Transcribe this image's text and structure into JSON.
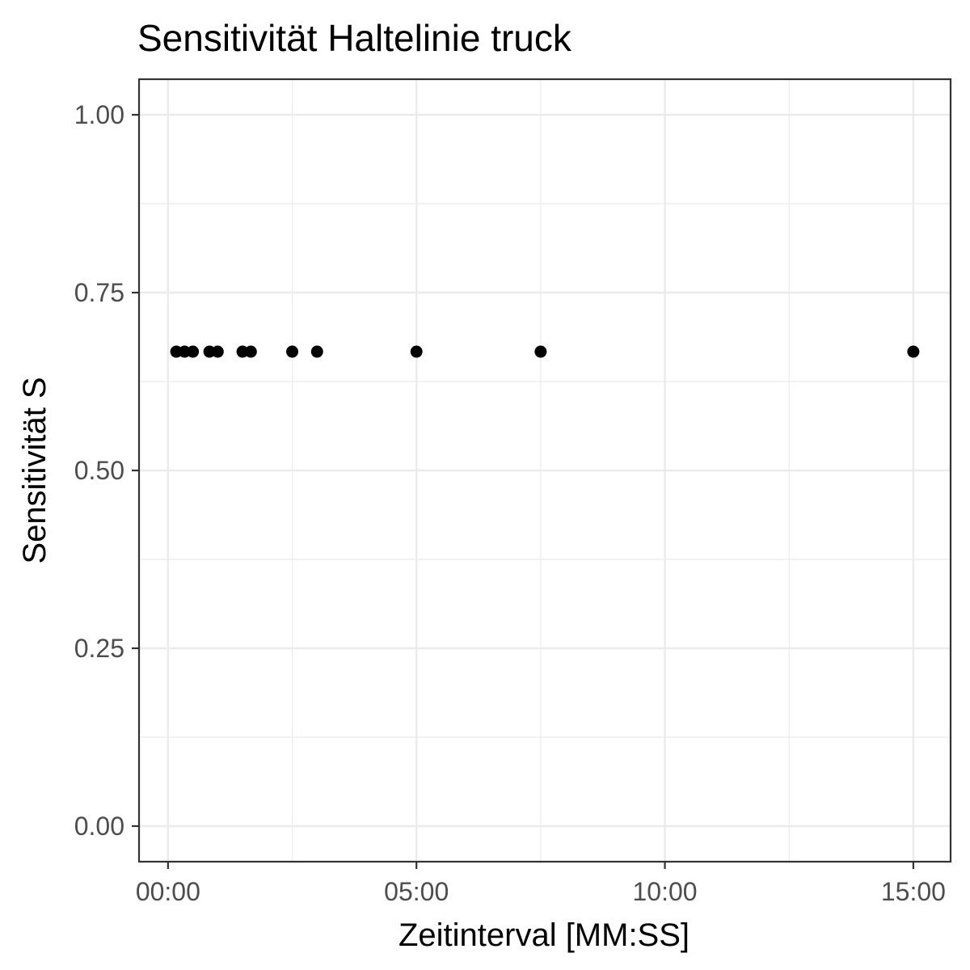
{
  "chart_data": {
    "type": "scatter",
    "title": "Sensitivität Haltelinie truck",
    "xlabel": "Zeitinterval [MM:SS]",
    "ylabel": "Sensitivität S",
    "x_ticks": [
      "00:00",
      "05:00",
      "10:00",
      "15:00"
    ],
    "y_ticks": [
      "0.00",
      "0.25",
      "0.50",
      "0.75",
      "1.00"
    ],
    "xlim": [
      "-00:35",
      "15:45"
    ],
    "ylim": [
      -0.05,
      1.05
    ],
    "grid": true,
    "point_color": "#000000",
    "points": [
      {
        "x": "00:10",
        "y": 0.667
      },
      {
        "x": "00:20",
        "y": 0.667
      },
      {
        "x": "00:30",
        "y": 0.667
      },
      {
        "x": "00:50",
        "y": 0.667
      },
      {
        "x": "01:00",
        "y": 0.667
      },
      {
        "x": "01:30",
        "y": 0.667
      },
      {
        "x": "01:40",
        "y": 0.667
      },
      {
        "x": "02:30",
        "y": 0.667
      },
      {
        "x": "03:00",
        "y": 0.667
      },
      {
        "x": "05:00",
        "y": 0.667
      },
      {
        "x": "07:30",
        "y": 0.667
      },
      {
        "x": "15:00",
        "y": 0.667
      }
    ]
  }
}
